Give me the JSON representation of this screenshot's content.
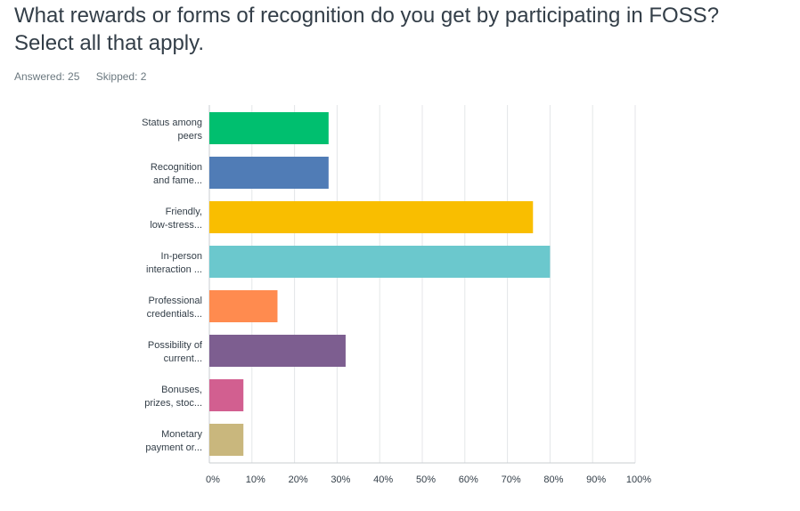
{
  "question": {
    "title": "What rewards or forms of recognition do you get by participating in FOSS? Select all that apply.",
    "answered_label": "Answered: 25",
    "skipped_label": "Skipped: 2"
  },
  "chart_data": {
    "type": "bar",
    "orientation": "horizontal",
    "categories": [
      [
        "Status among",
        "peers"
      ],
      [
        "Recognition",
        "and fame..."
      ],
      [
        "Friendly,",
        "low-stress..."
      ],
      [
        "In-person",
        "interaction ..."
      ],
      [
        "Professional",
        "credentials..."
      ],
      [
        "Possibility of",
        "current..."
      ],
      [
        "Bonuses,",
        "prizes, stoc..."
      ],
      [
        "Monetary",
        "payment or..."
      ]
    ],
    "values": [
      28,
      28,
      76,
      80,
      16,
      32,
      8,
      8
    ],
    "colors": [
      "#00bf6f",
      "#507cb6",
      "#f9be00",
      "#6bc8cd",
      "#ff8b4f",
      "#7d5e90",
      "#d25f90",
      "#c9b77d"
    ],
    "xlim": [
      0,
      100
    ],
    "xticks": [
      "0%",
      "10%",
      "20%",
      "30%",
      "40%",
      "50%",
      "60%",
      "70%",
      "80%",
      "90%",
      "100%"
    ],
    "grid": true,
    "title": "",
    "xlabel": "",
    "ylabel": ""
  }
}
